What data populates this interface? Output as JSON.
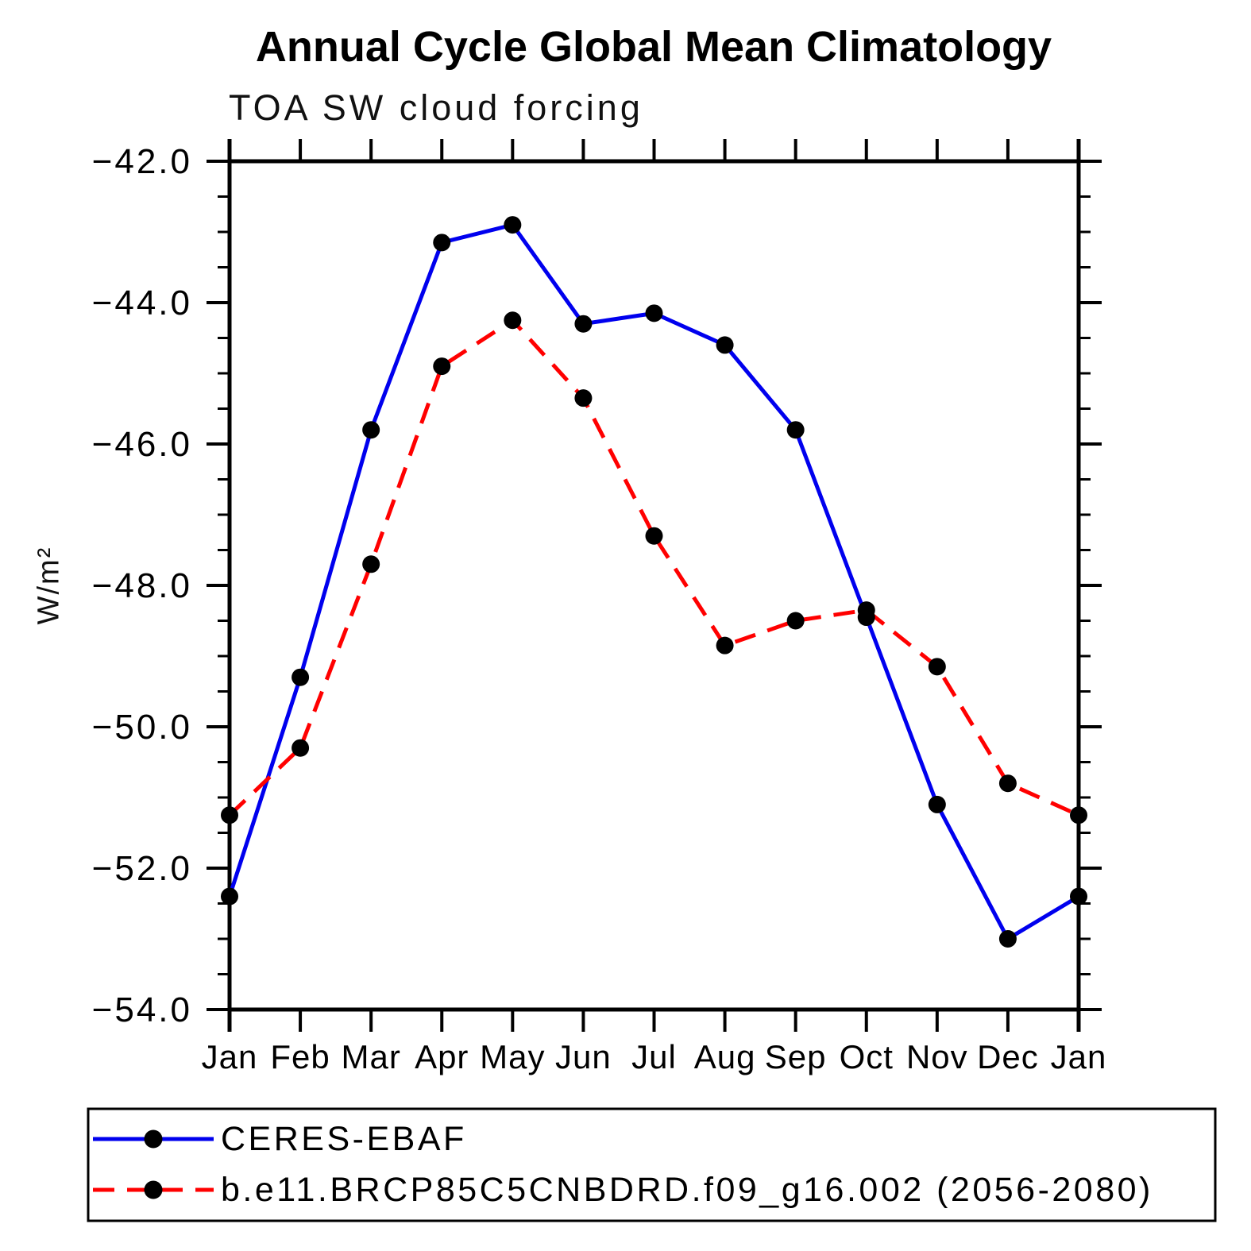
{
  "page": {
    "title": "Annual Cycle Global Mean Climatology",
    "subtitle": "TOA SW cloud forcing"
  },
  "chart_data": {
    "type": "line",
    "title": "Annual Cycle Global Mean Climatology",
    "subtitle": "TOA SW cloud forcing",
    "ylabel": "W/m²",
    "xlabel": "",
    "categories": [
      "Jan",
      "Feb",
      "Mar",
      "Apr",
      "May",
      "Jun",
      "Jul",
      "Aug",
      "Sep",
      "Oct",
      "Nov",
      "Dec",
      "Jan"
    ],
    "ylim": [
      -54.0,
      -42.0
    ],
    "ytick_major_step": 2.0,
    "ytick_minor_step": 0.5,
    "grid": false,
    "legend_position": "bottom",
    "axis_color": "#000000",
    "marker_color": "#000000",
    "series": [
      {
        "name": "CERES-EBAF",
        "color": "#0000ee",
        "style": "solid",
        "marker": "circle",
        "values": [
          -52.4,
          -49.3,
          -45.8,
          -43.15,
          -42.9,
          -44.3,
          -44.15,
          -44.6,
          -45.8,
          -48.45,
          -51.1,
          -53.0,
          -52.4
        ]
      },
      {
        "name": "b.e11.BRCP85C5CNBDRD.f09_g16.002 (2056-2080)",
        "color": "#ff0000",
        "style": "dashed",
        "marker": "circle",
        "values": [
          -51.25,
          -50.3,
          -47.7,
          -44.9,
          -44.25,
          -45.35,
          -47.3,
          -48.85,
          -48.5,
          -48.35,
          -49.15,
          -50.8,
          -51.25
        ]
      }
    ]
  }
}
